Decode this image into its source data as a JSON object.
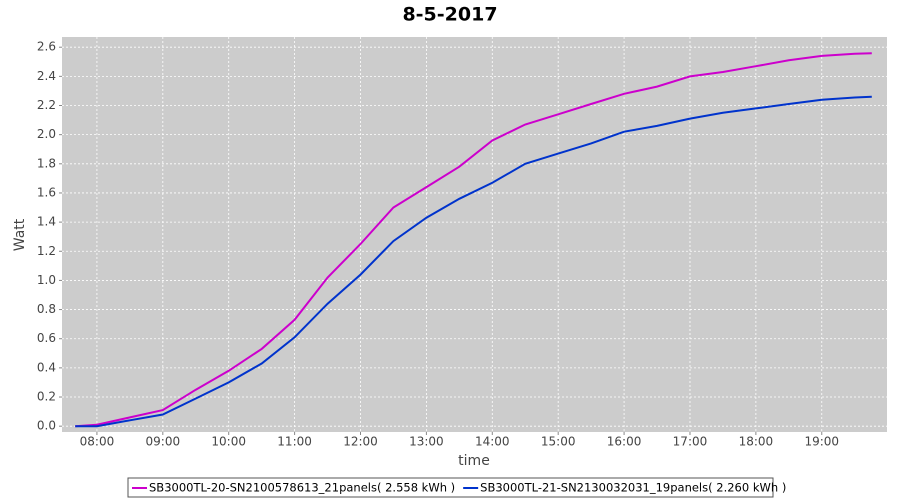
{
  "chart_data": {
    "type": "line",
    "title": "8-5-2017",
    "x_label": "time",
    "y_label": "Watt",
    "x": [
      7.67,
      8.0,
      8.5,
      9.0,
      9.5,
      10.0,
      10.5,
      11.0,
      11.5,
      12.0,
      12.5,
      13.0,
      13.5,
      14.0,
      14.5,
      15.0,
      15.5,
      16.0,
      16.5,
      17.0,
      17.5,
      18.0,
      18.5,
      19.0,
      19.5,
      19.76
    ],
    "series": [
      {
        "name": "SB3000TL-20-SN2100578613_21panels( 2.558 kWh )",
        "color": "#cc00cc",
        "values": [
          0,
          0.01,
          0.06,
          0.11,
          0.25,
          0.38,
          0.53,
          0.73,
          1.02,
          1.25,
          1.5,
          1.64,
          1.78,
          1.96,
          2.07,
          2.14,
          2.21,
          2.28,
          2.33,
          2.4,
          2.43,
          2.47,
          2.51,
          2.54,
          2.555,
          2.558
        ]
      },
      {
        "name": "SB3000TL-21-SN2130032031_19panels( 2.260 kWh )",
        "color": "#0033cc",
        "values": [
          0,
          0.0,
          0.04,
          0.08,
          0.19,
          0.3,
          0.43,
          0.61,
          0.84,
          1.04,
          1.27,
          1.43,
          1.56,
          1.67,
          1.8,
          1.87,
          1.94,
          2.02,
          2.06,
          2.11,
          2.15,
          2.18,
          2.21,
          2.24,
          2.255,
          2.26
        ]
      }
    ],
    "xlim": [
      7.47,
      19.99
    ],
    "xticks": [
      {
        "value": 8,
        "label": "08:00"
      },
      {
        "value": 9,
        "label": "09:00"
      },
      {
        "value": 10,
        "label": "10:00"
      },
      {
        "value": 11,
        "label": "11:00"
      },
      {
        "value": 12,
        "label": "12:00"
      },
      {
        "value": 13,
        "label": "13:00"
      },
      {
        "value": 14,
        "label": "14:00"
      },
      {
        "value": 15,
        "label": "15:00"
      },
      {
        "value": 16,
        "label": "16:00"
      },
      {
        "value": 17,
        "label": "17:00"
      },
      {
        "value": 18,
        "label": "18:00"
      },
      {
        "value": 19,
        "label": "19:00"
      }
    ],
    "ylim": [
      -0.04,
      2.67
    ],
    "yticks": [
      {
        "value": 0,
        "label": "0.0"
      },
      0.2,
      0.4,
      0.6,
      0.8,
      {
        "value": 1,
        "label": "1.0"
      },
      1.2,
      1.4,
      1.6,
      1.8,
      {
        "value": 2,
        "label": "2.0"
      },
      2.2,
      2.4,
      2.6
    ],
    "grid": true,
    "legend": "bottom"
  }
}
